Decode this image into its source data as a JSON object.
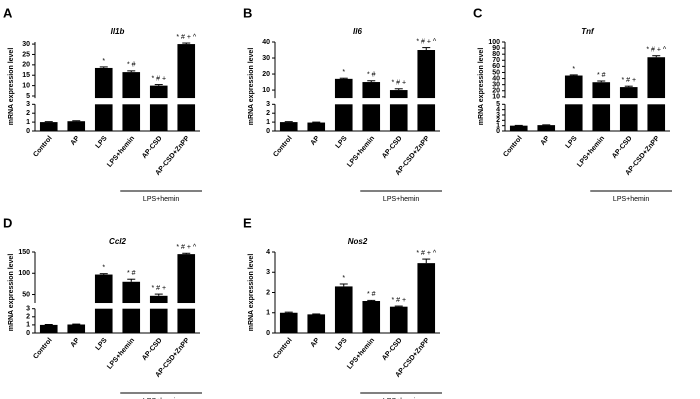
{
  "chart_data": [
    {
      "type": "bar",
      "panel_label": "A",
      "title": "Il1b",
      "y_label": "mRNA expression level",
      "color": "#000000",
      "categories": [
        "Control",
        "AP",
        "LPS",
        "LPS+hemin",
        "AP-CSD",
        "AP-CSD+ZnPP"
      ],
      "values": [
        1,
        1.1,
        18.5,
        16.5,
        10,
        30
      ],
      "errors": [
        0.05,
        0.05,
        0.5,
        0.6,
        0.5,
        0.5
      ],
      "sig_labels": [
        null,
        null,
        "*",
        "* #",
        "* # +",
        "* # + ^"
      ],
      "group_label": "LPS+hemin",
      "y_segments": [
        {
          "ylim": [
            0,
            3
          ],
          "yticks": [
            0,
            1,
            2,
            3
          ]
        },
        {
          "ylim": [
            4,
            31
          ],
          "yticks": [
            5,
            10,
            15,
            20,
            25,
            30
          ]
        }
      ]
    },
    {
      "type": "bar",
      "panel_label": "B",
      "title": "Il6",
      "y_label": "mRNA expression level",
      "color": "#000000",
      "categories": [
        "Control",
        "AP",
        "LPS",
        "LPS+hemin",
        "AP-CSD",
        "AP-CSD+ZnPP"
      ],
      "values": [
        1,
        0.95,
        17,
        15,
        10,
        35
      ],
      "errors": [
        0.05,
        0.05,
        0.4,
        0.8,
        0.8,
        1.5
      ],
      "sig_labels": [
        null,
        null,
        "*",
        "* #",
        "* # +",
        "* # + ^"
      ],
      "group_label": "LPS+hemin",
      "y_segments": [
        {
          "ylim": [
            0,
            3
          ],
          "yticks": [
            0,
            1,
            2,
            3
          ]
        },
        {
          "ylim": [
            5,
            40
          ],
          "yticks": [
            10,
            20,
            30,
            40
          ]
        }
      ]
    },
    {
      "type": "bar",
      "panel_label": "C",
      "title": "Tnf",
      "y_label": "mRNA expression level",
      "color": "#000000",
      "categories": [
        "Control",
        "AP",
        "LPS",
        "LPS+hemin",
        "AP-CSD",
        "AP-CSD+ZnPP"
      ],
      "values": [
        1,
        1.1,
        45,
        34,
        26,
        75
      ],
      "errors": [
        0.05,
        0.05,
        1,
        2,
        1.5,
        2.5
      ],
      "sig_labels": [
        null,
        null,
        "*",
        "* #",
        "* # +",
        "* # + ^"
      ],
      "group_label": "LPS+hemin",
      "y_segments": [
        {
          "ylim": [
            0,
            5
          ],
          "yticks": [
            0,
            1,
            2,
            3,
            4,
            5
          ]
        },
        {
          "ylim": [
            8,
            100
          ],
          "yticks": [
            10,
            20,
            30,
            40,
            50,
            60,
            70,
            80,
            90,
            100
          ]
        }
      ]
    },
    {
      "type": "bar",
      "panel_label": "D",
      "title": "Ccl2",
      "y_label": "mRNA expression level",
      "color": "#000000",
      "categories": [
        "Control",
        "AP",
        "LPS",
        "LPS+hemin",
        "AP-CSD",
        "AP-CSD+ZnPP"
      ],
      "values": [
        1,
        1.05,
        97,
        80,
        47,
        145
      ],
      "errors": [
        0.05,
        0.05,
        2,
        6,
        4,
        2
      ],
      "sig_labels": [
        null,
        null,
        "*",
        "* #",
        "* # +",
        "* # + ^"
      ],
      "group_label": "LPS+hemin",
      "y_segments": [
        {
          "ylim": [
            0,
            3
          ],
          "yticks": [
            0,
            1,
            2,
            3
          ]
        },
        {
          "ylim": [
            30,
            150
          ],
          "yticks": [
            50,
            100,
            150
          ]
        }
      ]
    },
    {
      "type": "bar",
      "panel_label": "E",
      "title": "Nos2",
      "y_label": "mRNA expression level",
      "color": "#000000",
      "categories": [
        "Control",
        "AP",
        "LPS",
        "LPS+hemin",
        "AP-CSD",
        "AP-CSD+ZnPP"
      ],
      "values": [
        1,
        0.92,
        2.3,
        1.58,
        1.3,
        3.45
      ],
      "errors": [
        0.03,
        0.02,
        0.12,
        0.03,
        0.03,
        0.2
      ],
      "sig_labels": [
        null,
        null,
        "*",
        "* #",
        "* # +",
        "* # + ^"
      ],
      "group_label": "LPS+hemin",
      "ylim": [
        0,
        4
      ],
      "yticks": [
        0,
        1,
        2,
        3,
        4
      ]
    }
  ]
}
